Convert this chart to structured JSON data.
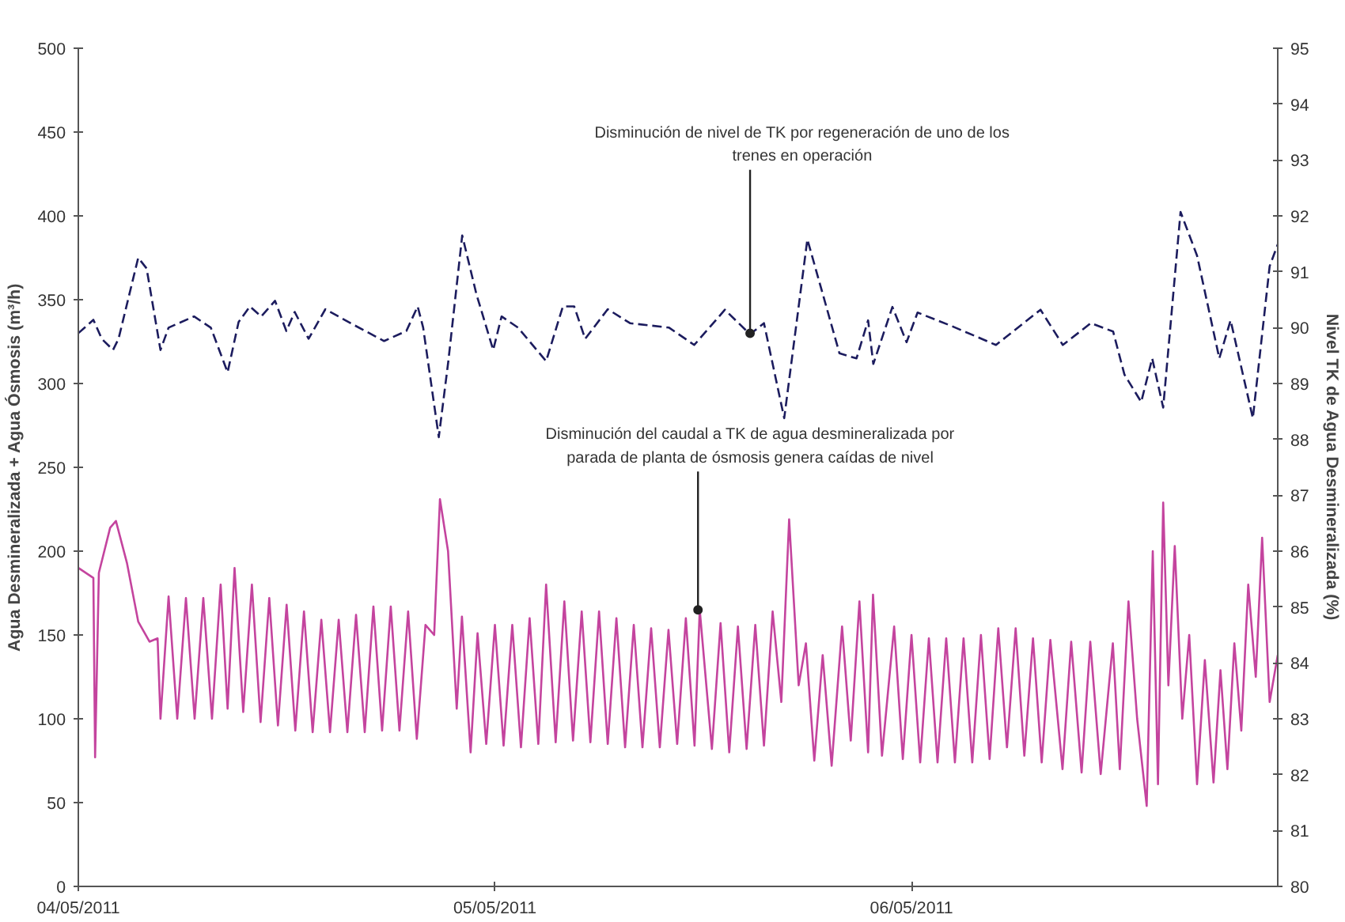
{
  "chart_data": {
    "type": "line",
    "ylabel": "Agua Desmineralizada + Agua Ósmosis (m³/h)",
    "y2label": "Nivel TK de Agua Desmineralizada (%)",
    "xlim": [
      "2011-05-04T00:00",
      "2011-05-06T21:06"
    ],
    "xticks": [
      {
        "value": "2011-05-04",
        "label": "04/05/2011"
      },
      {
        "value": "2011-05-05",
        "label": "05/05/2011"
      },
      {
        "value": "2011-05-06",
        "label": "06/05/2011"
      }
    ],
    "ylim": [
      0,
      500
    ],
    "yticks": [
      0,
      50,
      100,
      150,
      200,
      250,
      300,
      350,
      400,
      450,
      500
    ],
    "y2lim": [
      80,
      95
    ],
    "y2ticks": [
      80,
      81,
      82,
      83,
      84,
      85,
      86,
      87,
      88,
      89,
      90,
      91,
      92,
      93,
      94,
      95
    ],
    "grid": false,
    "marker": "none",
    "series": [
      {
        "color": "#c4449e",
        "line_style": "solid",
        "x": [
          "2011-05-04T00:00",
          "2011-05-04T00:52",
          "2011-05-04T00:58",
          "2011-05-04T01:11",
          "2011-05-04T01:50",
          "2011-05-04T02:10",
          "2011-05-04T02:48",
          "2011-05-04T03:27",
          "2011-05-04T04:06",
          "2011-05-04T04:34",
          "2011-05-04T04:44",
          "2011-05-04T05:12",
          "2011-05-04T05:42",
          "2011-05-04T06:12",
          "2011-05-04T06:42",
          "2011-05-04T07:12",
          "2011-05-04T07:42",
          "2011-05-04T08:12",
          "2011-05-04T08:36",
          "2011-05-04T09:00",
          "2011-05-04T09:30",
          "2011-05-04T10:00",
          "2011-05-04T10:30",
          "2011-05-04T11:00",
          "2011-05-04T11:30",
          "2011-05-04T12:00",
          "2011-05-04T12:30",
          "2011-05-04T13:00",
          "2011-05-04T13:30",
          "2011-05-04T14:00",
          "2011-05-04T14:30",
          "2011-05-04T15:00",
          "2011-05-04T15:30",
          "2011-05-04T16:00",
          "2011-05-04T16:30",
          "2011-05-04T17:00",
          "2011-05-04T17:30",
          "2011-05-04T18:00",
          "2011-05-04T18:30",
          "2011-05-04T19:00",
          "2011-05-04T19:30",
          "2011-05-04T20:00",
          "2011-05-04T20:30",
          "2011-05-04T20:50",
          "2011-05-04T21:18",
          "2011-05-04T21:48",
          "2011-05-04T22:06",
          "2011-05-04T22:36",
          "2011-05-04T23:00",
          "2011-05-04T23:30",
          "2011-05-05T00:00",
          "2011-05-05T00:30",
          "2011-05-05T01:00",
          "2011-05-05T01:30",
          "2011-05-05T02:00",
          "2011-05-05T02:30",
          "2011-05-05T02:57",
          "2011-05-05T03:30",
          "2011-05-05T04:00",
          "2011-05-05T04:30",
          "2011-05-05T05:00",
          "2011-05-05T05:30",
          "2011-05-05T06:00",
          "2011-05-05T06:30",
          "2011-05-05T07:00",
          "2011-05-05T07:30",
          "2011-05-05T08:00",
          "2011-05-05T08:30",
          "2011-05-05T09:00",
          "2011-05-05T09:30",
          "2011-05-05T10:00",
          "2011-05-05T10:30",
          "2011-05-05T11:00",
          "2011-05-05T11:30",
          "2011-05-05T11:48",
          "2011-05-05T12:30",
          "2011-05-05T13:00",
          "2011-05-05T13:30",
          "2011-05-05T14:00",
          "2011-05-05T14:30",
          "2011-05-05T15:00",
          "2011-05-05T15:30",
          "2011-05-05T16:00",
          "2011-05-05T16:30",
          "2011-05-05T16:57",
          "2011-05-05T17:30",
          "2011-05-05T17:55",
          "2011-05-05T18:24",
          "2011-05-05T18:53",
          "2011-05-05T19:24",
          "2011-05-05T20:00",
          "2011-05-05T20:30",
          "2011-05-05T21:00",
          "2011-05-05T21:30",
          "2011-05-05T21:47",
          "2011-05-05T22:18",
          "2011-05-05T23:00",
          "2011-05-05T23:30",
          "2011-05-06T00:00",
          "2011-05-06T00:30",
          "2011-05-06T01:00",
          "2011-05-06T01:30",
          "2011-05-06T02:00",
          "2011-05-06T02:30",
          "2011-05-06T03:00",
          "2011-05-06T03:30",
          "2011-05-06T04:00",
          "2011-05-06T04:30",
          "2011-05-06T05:00",
          "2011-05-06T05:30",
          "2011-05-06T06:00",
          "2011-05-06T06:30",
          "2011-05-06T07:00",
          "2011-05-06T07:30",
          "2011-05-06T08:00",
          "2011-05-06T08:42",
          "2011-05-06T09:12",
          "2011-05-06T09:48",
          "2011-05-06T10:18",
          "2011-05-06T10:54",
          "2011-05-06T11:36",
          "2011-05-06T12:00",
          "2011-05-06T12:30",
          "2011-05-06T13:00",
          "2011-05-06T13:33",
          "2011-05-06T13:54",
          "2011-05-06T14:12",
          "2011-05-06T14:30",
          "2011-05-06T14:48",
          "2011-05-06T15:10",
          "2011-05-06T15:36",
          "2011-05-06T16:00",
          "2011-05-06T16:27",
          "2011-05-06T16:54",
          "2011-05-06T17:24",
          "2011-05-06T17:48",
          "2011-05-06T18:12",
          "2011-05-06T18:36",
          "2011-05-06T19:00",
          "2011-05-06T19:24",
          "2011-05-06T19:50",
          "2011-05-06T20:12",
          "2011-05-06T20:38",
          "2011-05-06T21:06"
        ],
        "values": [
          190,
          184,
          77,
          187,
          214,
          218,
          193,
          158,
          146,
          148,
          100,
          173,
          100,
          172,
          100,
          172,
          100,
          180,
          106,
          190,
          104,
          180,
          98,
          172,
          96,
          168,
          93,
          164,
          92,
          159,
          92,
          159,
          92,
          162,
          92,
          167,
          93,
          167,
          93,
          164,
          88,
          156,
          150,
          231,
          200,
          106,
          161,
          80,
          151,
          85,
          156,
          84,
          156,
          83,
          160,
          85,
          180,
          86,
          170,
          87,
          164,
          86,
          164,
          85,
          160,
          83,
          156,
          83,
          154,
          83,
          153,
          85,
          160,
          84,
          165,
          82,
          157,
          80,
          155,
          82,
          156,
          84,
          164,
          110,
          219,
          120,
          145,
          75,
          138,
          72,
          155,
          87,
          170,
          80,
          174,
          78,
          155,
          76,
          150,
          74,
          148,
          74,
          148,
          74,
          148,
          74,
          150,
          76,
          154,
          83,
          154,
          78,
          148,
          74,
          147,
          70,
          146,
          68,
          146,
          67,
          145,
          70,
          170,
          100,
          48,
          200,
          61,
          229,
          120,
          203,
          100,
          150,
          61,
          135,
          62,
          129,
          70,
          145,
          93,
          180,
          125,
          208,
          110,
          138
        ]
      },
      {
        "color": "#1c1c5e",
        "line_style": "dashed",
        "axis": "y2",
        "x": [
          "2011-05-04T00:00",
          "2011-05-04T00:52",
          "2011-05-04T01:21",
          "2011-05-04T02:00",
          "2011-05-04T02:19",
          "2011-05-04T03:27",
          "2011-05-04T03:56",
          "2011-05-04T04:44",
          "2011-05-04T05:12",
          "2011-05-04T06:40",
          "2011-05-04T07:38",
          "2011-05-04T08:36",
          "2011-05-04T09:14",
          "2011-05-04T09:53",
          "2011-05-04T10:32",
          "2011-05-04T11:20",
          "2011-05-04T11:59",
          "2011-05-04T12:28",
          "2011-05-04T13:16",
          "2011-05-04T14:14",
          "2011-05-04T15:41",
          "2011-05-04T17:37",
          "2011-05-04T18:54",
          "2011-05-04T19:33",
          "2011-05-04T19:52",
          "2011-05-04T20:46",
          "2011-05-04T21:19",
          "2011-05-04T22:07",
          "2011-05-04T22:56",
          "2011-05-04T23:54",
          "2011-05-05T00:23",
          "2011-05-05T01:20",
          "2011-05-05T02:57",
          "2011-05-05T03:55",
          "2011-05-05T04:34",
          "2011-05-05T05:12",
          "2011-05-05T06:30",
          "2011-05-05T07:47",
          "2011-05-05T10:02",
          "2011-05-05T11:29",
          "2011-05-05T13:15",
          "2011-05-05T14:42",
          "2011-05-05T15:30",
          "2011-05-05T16:40",
          "2011-05-05T18:00",
          "2011-05-05T19:51",
          "2011-05-05T20:50",
          "2011-05-05T21:30",
          "2011-05-05T21:48",
          "2011-05-05T22:54",
          "2011-05-05T23:43",
          "2011-05-06T00:21",
          "2011-05-06T02:18",
          "2011-05-06T04:52",
          "2011-05-06T07:26",
          "2011-05-06T08:43",
          "2011-05-06T10:20",
          "2011-05-06T11:37",
          "2011-05-06T12:16",
          "2011-05-06T13:14",
          "2011-05-06T13:52",
          "2011-05-06T14:30",
          "2011-05-06T15:30",
          "2011-05-06T16:27",
          "2011-05-06T17:44",
          "2011-05-06T18:23",
          "2011-05-06T19:40",
          "2011-05-06T20:38",
          "2011-05-06T21:06"
        ],
        "values": [
          89.9,
          90.14,
          89.8,
          89.6,
          89.8,
          91.25,
          91.06,
          89.6,
          90.0,
          90.2,
          90.0,
          89.2,
          90.1,
          90.38,
          90.2,
          90.48,
          89.94,
          90.28,
          89.8,
          90.33,
          90.08,
          89.76,
          89.94,
          90.38,
          90.0,
          88.04,
          89.4,
          91.65,
          90.6,
          89.6,
          90.2,
          90.0,
          89.4,
          90.38,
          90.38,
          89.8,
          90.33,
          90.08,
          90.0,
          89.69,
          90.32,
          89.88,
          90.08,
          88.38,
          91.58,
          89.54,
          89.45,
          90.13,
          89.35,
          90.37,
          89.74,
          90.27,
          90.03,
          89.69,
          90.32,
          89.69,
          90.08,
          89.93,
          89.16,
          88.67,
          89.45,
          88.57,
          92.07,
          91.29,
          89.45,
          90.13,
          88.38,
          91.1,
          91.49
        ]
      }
    ],
    "annotations": [
      {
        "text": "Disminución de nivel de TK por regeneración de uno de los trenes en operación",
        "x": "2011-05-05T14:42",
        "y": 330
      },
      {
        "text": "Disminución del caudal a TK de agua desmineralizada por parada de planta de ósmosis genera caídas de nivel",
        "x": "2011-05-05T11:42",
        "y": 165
      }
    ]
  }
}
